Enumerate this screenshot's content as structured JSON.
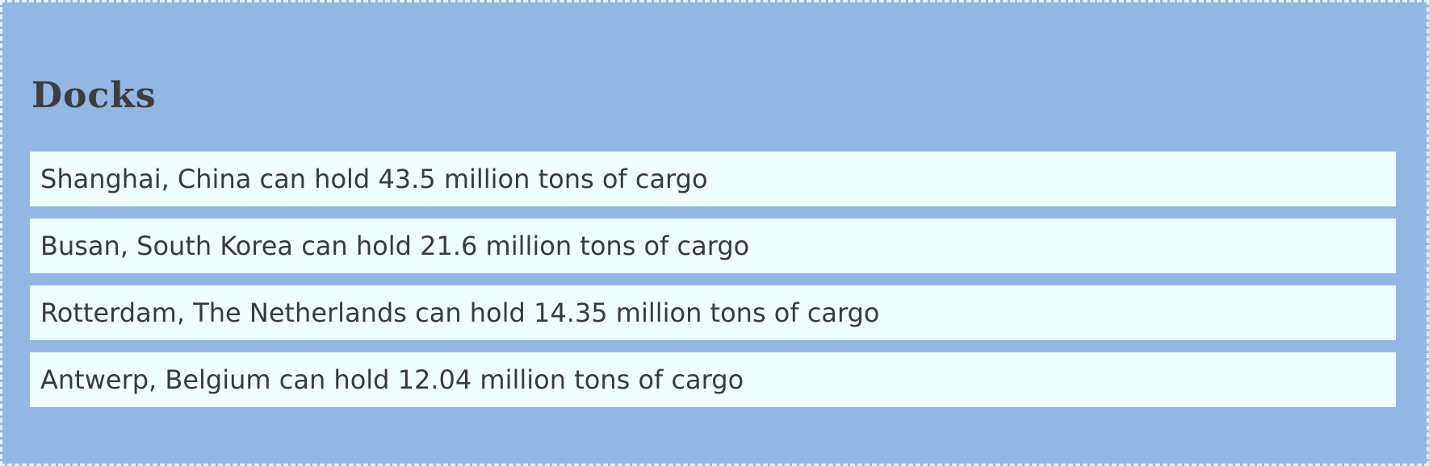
{
  "page": {
    "title": "Docks"
  },
  "docks": [
    {
      "text": "Shanghai, China can hold 43.5 million tons of cargo"
    },
    {
      "text": "Busan, South Korea can hold 21.6 million tons of cargo"
    },
    {
      "text": "Rotterdam, The Netherlands can hold 14.35 million tons of cargo"
    },
    {
      "text": "Antwerp, Belgium can hold 12.04 million tons of cargo"
    }
  ],
  "colors": {
    "background": "#92b7e4",
    "item_background": "#effffd",
    "text": "#3a3a3a",
    "border": "#e6f2fb"
  }
}
